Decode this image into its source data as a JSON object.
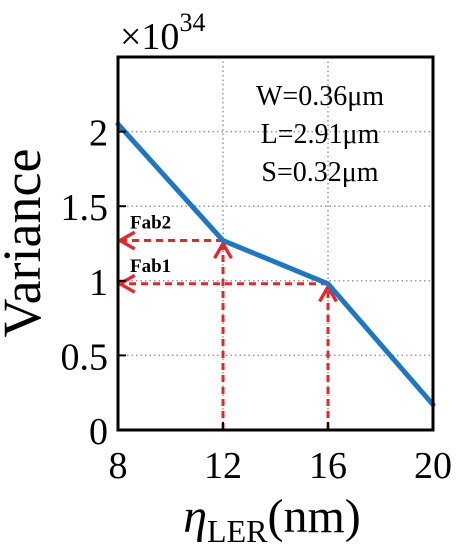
{
  "chart_data": {
    "type": "line",
    "title": "",
    "xlabel_symbol": "η",
    "xlabel_subscript": "LER",
    "xlabel_unit": "(nm)",
    "ylabel": "Variance",
    "multiplier_prefix": "×10",
    "multiplier_exponent": "34",
    "xlim": [
      8,
      20
    ],
    "ylim": [
      0,
      2.5
    ],
    "grid": "dotted",
    "x_ticks": [
      8,
      12,
      16,
      20
    ],
    "x_tick_labels": [
      "8",
      "12",
      "16",
      "20"
    ],
    "y_ticks": [
      0,
      0.5,
      1,
      1.5,
      2
    ],
    "y_tick_labels": [
      "0",
      "0.5",
      "1",
      "1.5",
      "2"
    ],
    "series": [
      {
        "color": "#1f77c4",
        "x": [
          8,
          12,
          16,
          20
        ],
        "y": [
          2.05,
          1.27,
          0.98,
          0.17
        ]
      }
    ],
    "annotation_lines": [
      "W=0.36μm",
      "L=2.91μm",
      "S=0.32μm"
    ],
    "markers": [
      {
        "label": "Fab2",
        "x": 12,
        "y": 1.27,
        "color": "#e8252a"
      },
      {
        "label": "Fab1",
        "x": 16,
        "y": 0.98,
        "color": "#e8252a"
      }
    ]
  }
}
